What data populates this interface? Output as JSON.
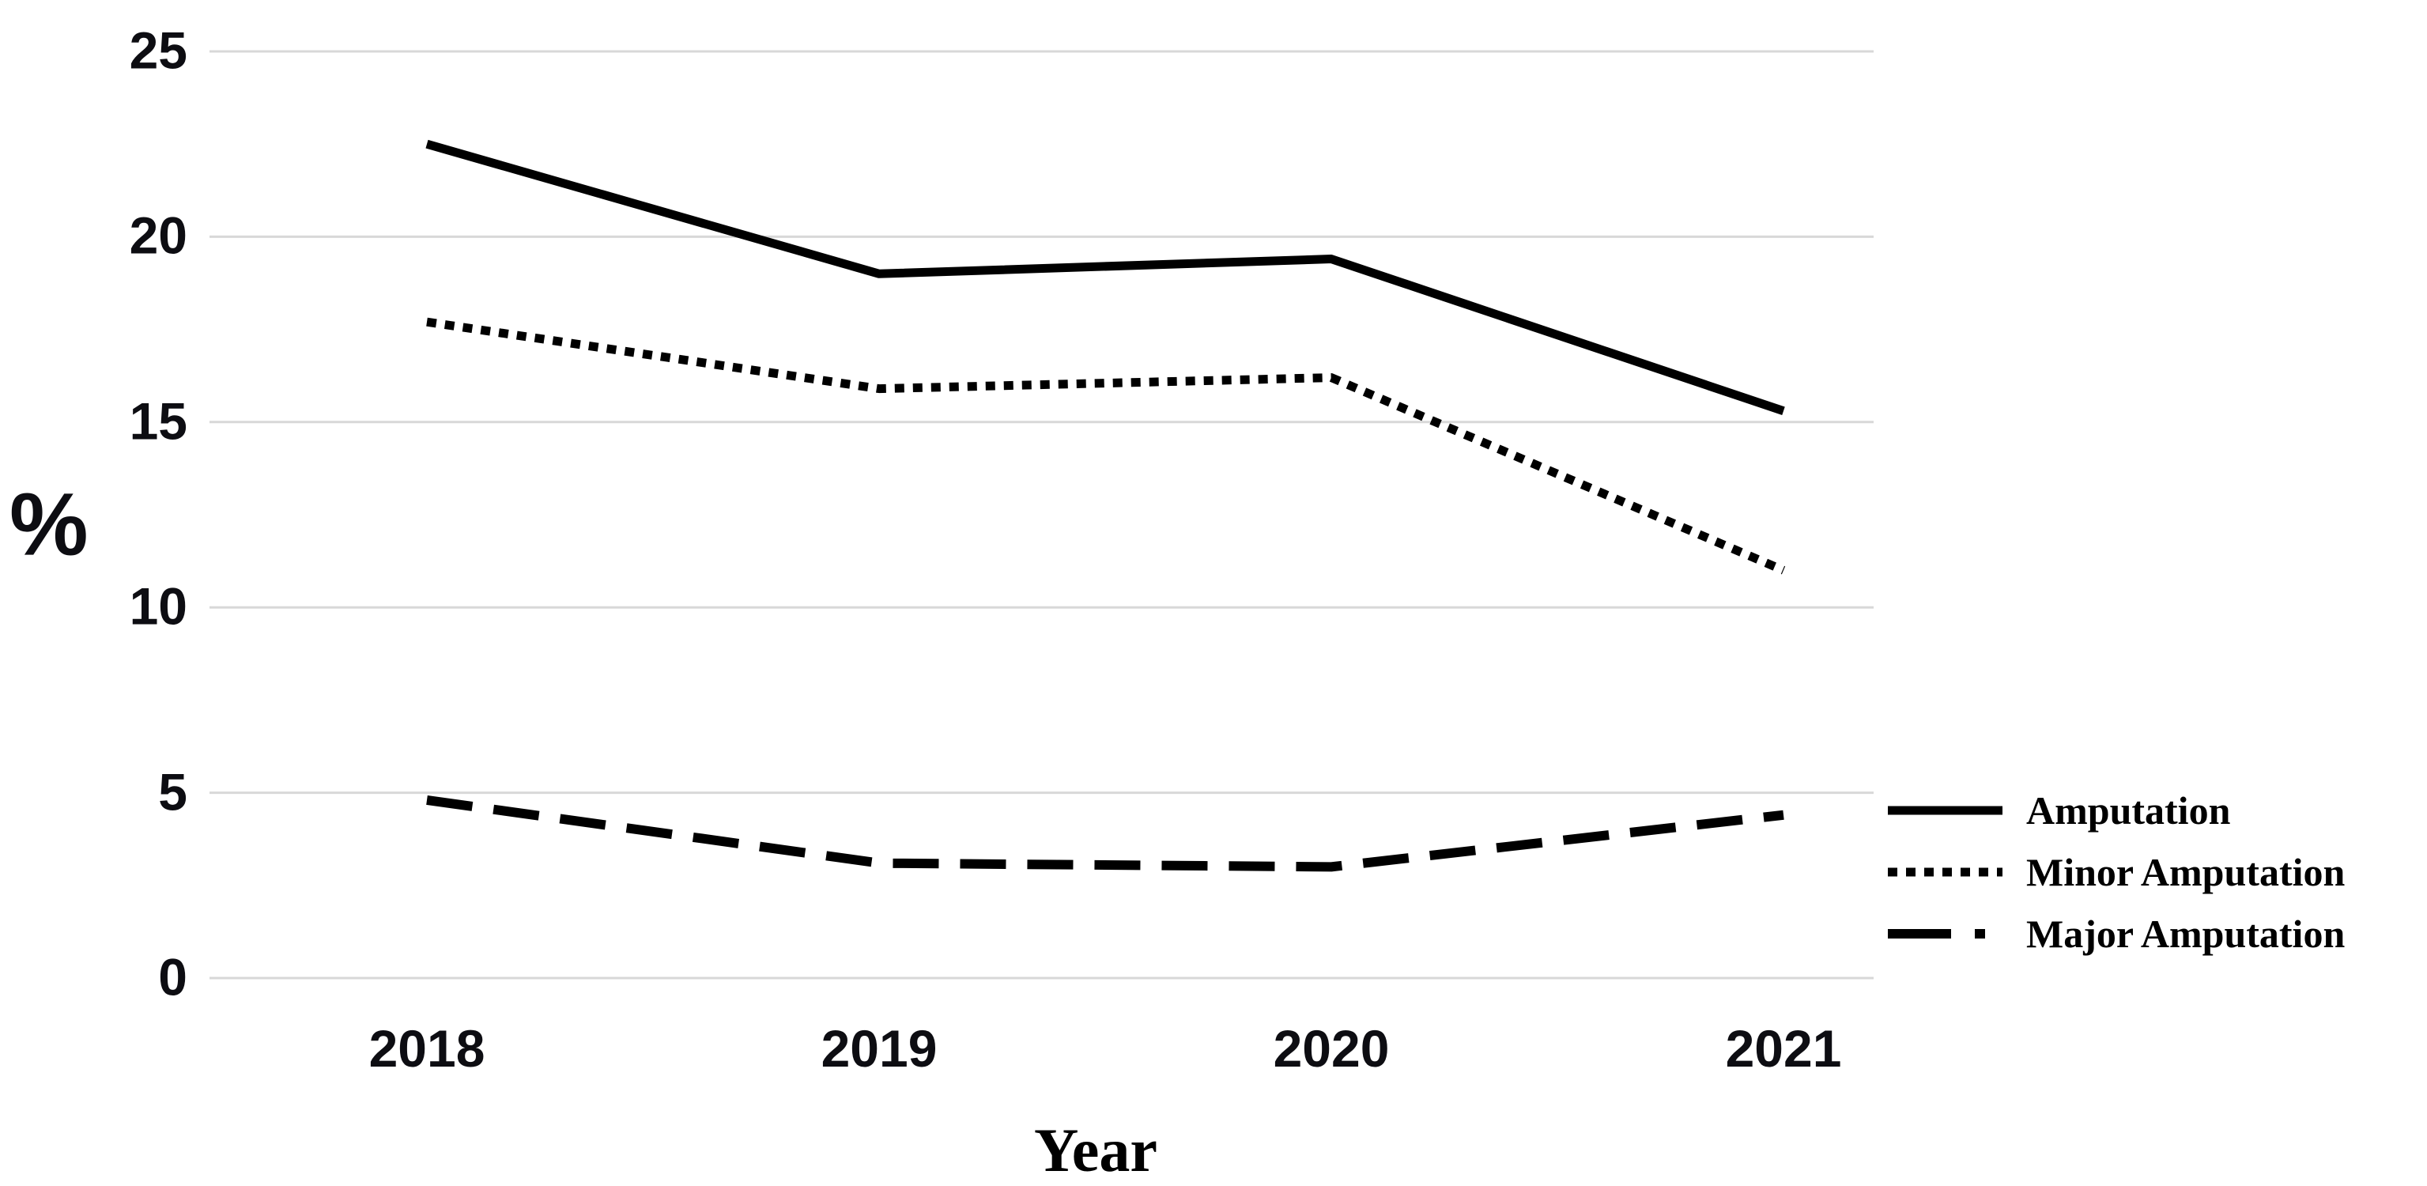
{
  "figure": {
    "background_color": "#ffffff",
    "text_color": "#000000"
  },
  "chart_data": {
    "type": "line",
    "title": "",
    "xlabel": "Year",
    "ylabel": "%",
    "categories": [
      "2018",
      "2019",
      "2020",
      "2021"
    ],
    "series": [
      {
        "name": "Amputation",
        "line_style": "solid",
        "color": "#000000",
        "values": [
          22.5,
          19.0,
          19.4,
          15.3
        ]
      },
      {
        "name": "Minor Amputation",
        "line_style": "dotted",
        "color": "#000000",
        "values": [
          17.7,
          15.9,
          16.2,
          11.0
        ]
      },
      {
        "name": "Major Amputation",
        "line_style": "long-dash",
        "color": "#000000",
        "values": [
          4.8,
          3.1,
          3.0,
          4.4
        ]
      }
    ],
    "ylim": [
      0,
      25
    ],
    "yticks": [
      0,
      5,
      10,
      15,
      20,
      25
    ],
    "grid": "horizontal",
    "gridline_color": "#d8d8d8",
    "legend_position": "right",
    "legend_swatches": [
      "solid-line",
      "dotted-line",
      "dash-dot-line"
    ]
  }
}
